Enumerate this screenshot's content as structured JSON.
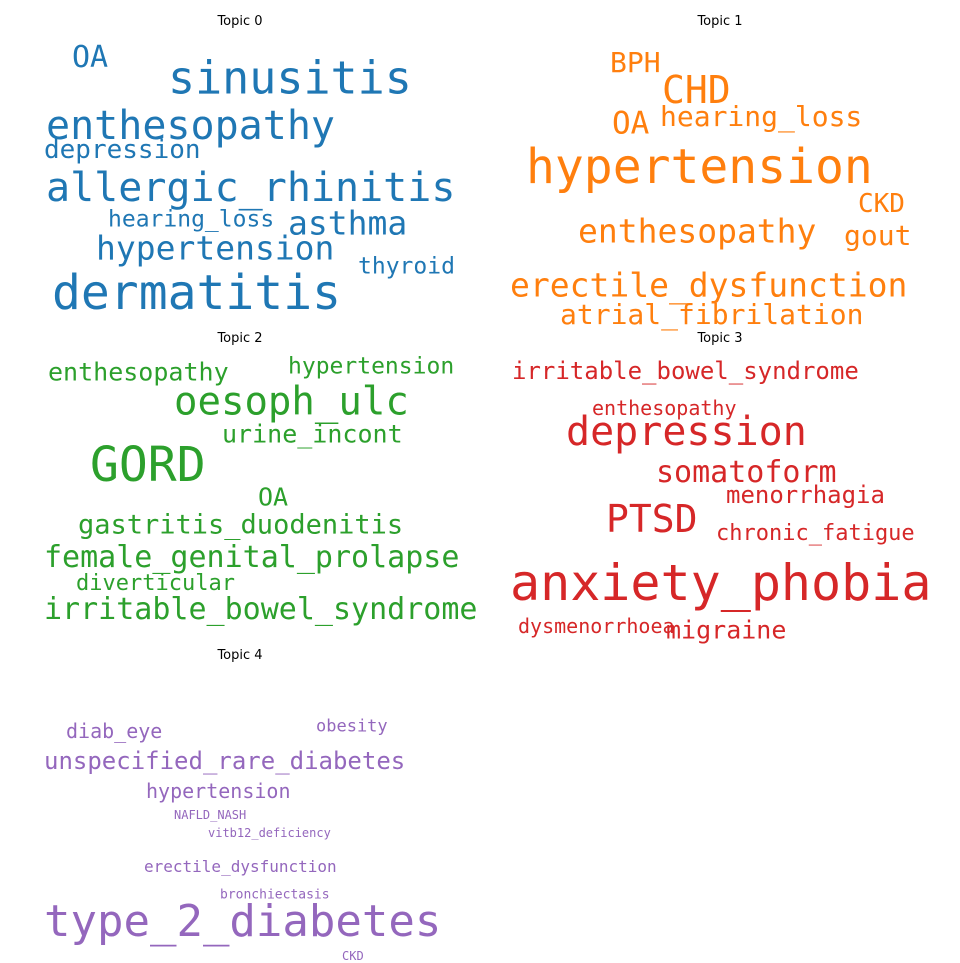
{
  "chart_data": {
    "type": "wordcloud",
    "topics": [
      {
        "title": "Topic 0",
        "color": "#1f77b4",
        "words": [
          {
            "text": "OA",
            "weight": 0.62
          },
          {
            "text": "sinusitis",
            "weight": 0.93
          },
          {
            "text": "enthesopathy",
            "weight": 0.83
          },
          {
            "text": "depression",
            "weight": 0.55
          },
          {
            "text": "allergic_rhinitis",
            "weight": 0.83
          },
          {
            "text": "hearing_loss",
            "weight": 0.48
          },
          {
            "text": "asthma",
            "weight": 0.69
          },
          {
            "text": "hypertension",
            "weight": 0.69
          },
          {
            "text": "thyroid",
            "weight": 0.48
          },
          {
            "text": "dermatitis",
            "weight": 1.0
          }
        ]
      },
      {
        "title": "Topic 1",
        "color": "#ff7f0e",
        "words": [
          {
            "text": "BPH",
            "weight": 0.58
          },
          {
            "text": "CHD",
            "weight": 0.79
          },
          {
            "text": "hearing_loss",
            "weight": 0.58
          },
          {
            "text": "OA",
            "weight": 0.65
          },
          {
            "text": "hypertension",
            "weight": 1.0
          },
          {
            "text": "CKD",
            "weight": 0.54
          },
          {
            "text": "enthesopathy",
            "weight": 0.68
          },
          {
            "text": "gout",
            "weight": 0.58
          },
          {
            "text": "erectile_dysfunction",
            "weight": 0.68
          },
          {
            "text": "atrial_fibrilation",
            "weight": 0.58
          }
        ]
      },
      {
        "title": "Topic 2",
        "color": "#2ca02c",
        "words": [
          {
            "text": "enthesopathy",
            "weight": 0.52
          },
          {
            "text": "hypertension",
            "weight": 0.47
          },
          {
            "text": "oesoph_ulc",
            "weight": 0.81
          },
          {
            "text": "urine_incont",
            "weight": 0.52
          },
          {
            "text": "GORD",
            "weight": 1.0
          },
          {
            "text": "OA",
            "weight": 0.52
          },
          {
            "text": "gastritis_duodenitis",
            "weight": 0.57
          },
          {
            "text": "female_genital_prolapse",
            "weight": 0.62
          },
          {
            "text": "diverticular",
            "weight": 0.45
          },
          {
            "text": "irritable_bowel_syndrome",
            "weight": 0.62
          }
        ]
      },
      {
        "title": "Topic 3",
        "color": "#d62728",
        "words": [
          {
            "text": "irritable_bowel_syndrome",
            "weight": 0.48
          },
          {
            "text": "enthesopathy",
            "weight": 0.39
          },
          {
            "text": "depression",
            "weight": 0.8
          },
          {
            "text": "somatoform",
            "weight": 0.59
          },
          {
            "text": "menorrhagia",
            "weight": 0.48
          },
          {
            "text": "PTSD",
            "weight": 0.75
          },
          {
            "text": "chronic_fatigue",
            "weight": 0.43
          },
          {
            "text": "anxiety_phobia",
            "weight": 1.0
          },
          {
            "text": "dysmenorrhoea",
            "weight": 0.39
          },
          {
            "text": "migraine",
            "weight": 0.5
          }
        ]
      },
      {
        "title": "Topic 4",
        "color": "#9467bd",
        "words": [
          {
            "text": "diab_eye",
            "weight": 0.45
          },
          {
            "text": "obesity",
            "weight": 0.38
          },
          {
            "text": "unspecified_rare_diabetes",
            "weight": 0.55
          },
          {
            "text": "hypertension",
            "weight": 0.45
          },
          {
            "text": "NAFLD_NASH",
            "weight": 0.27
          },
          {
            "text": "vitb12_deficiency",
            "weight": 0.27
          },
          {
            "text": "erectile_dysfunction",
            "weight": 0.36
          },
          {
            "text": "bronchiectasis",
            "weight": 0.29
          },
          {
            "text": "type_2_diabetes",
            "weight": 1.0
          },
          {
            "text": "CKD",
            "weight": 0.27
          }
        ]
      }
    ]
  }
}
